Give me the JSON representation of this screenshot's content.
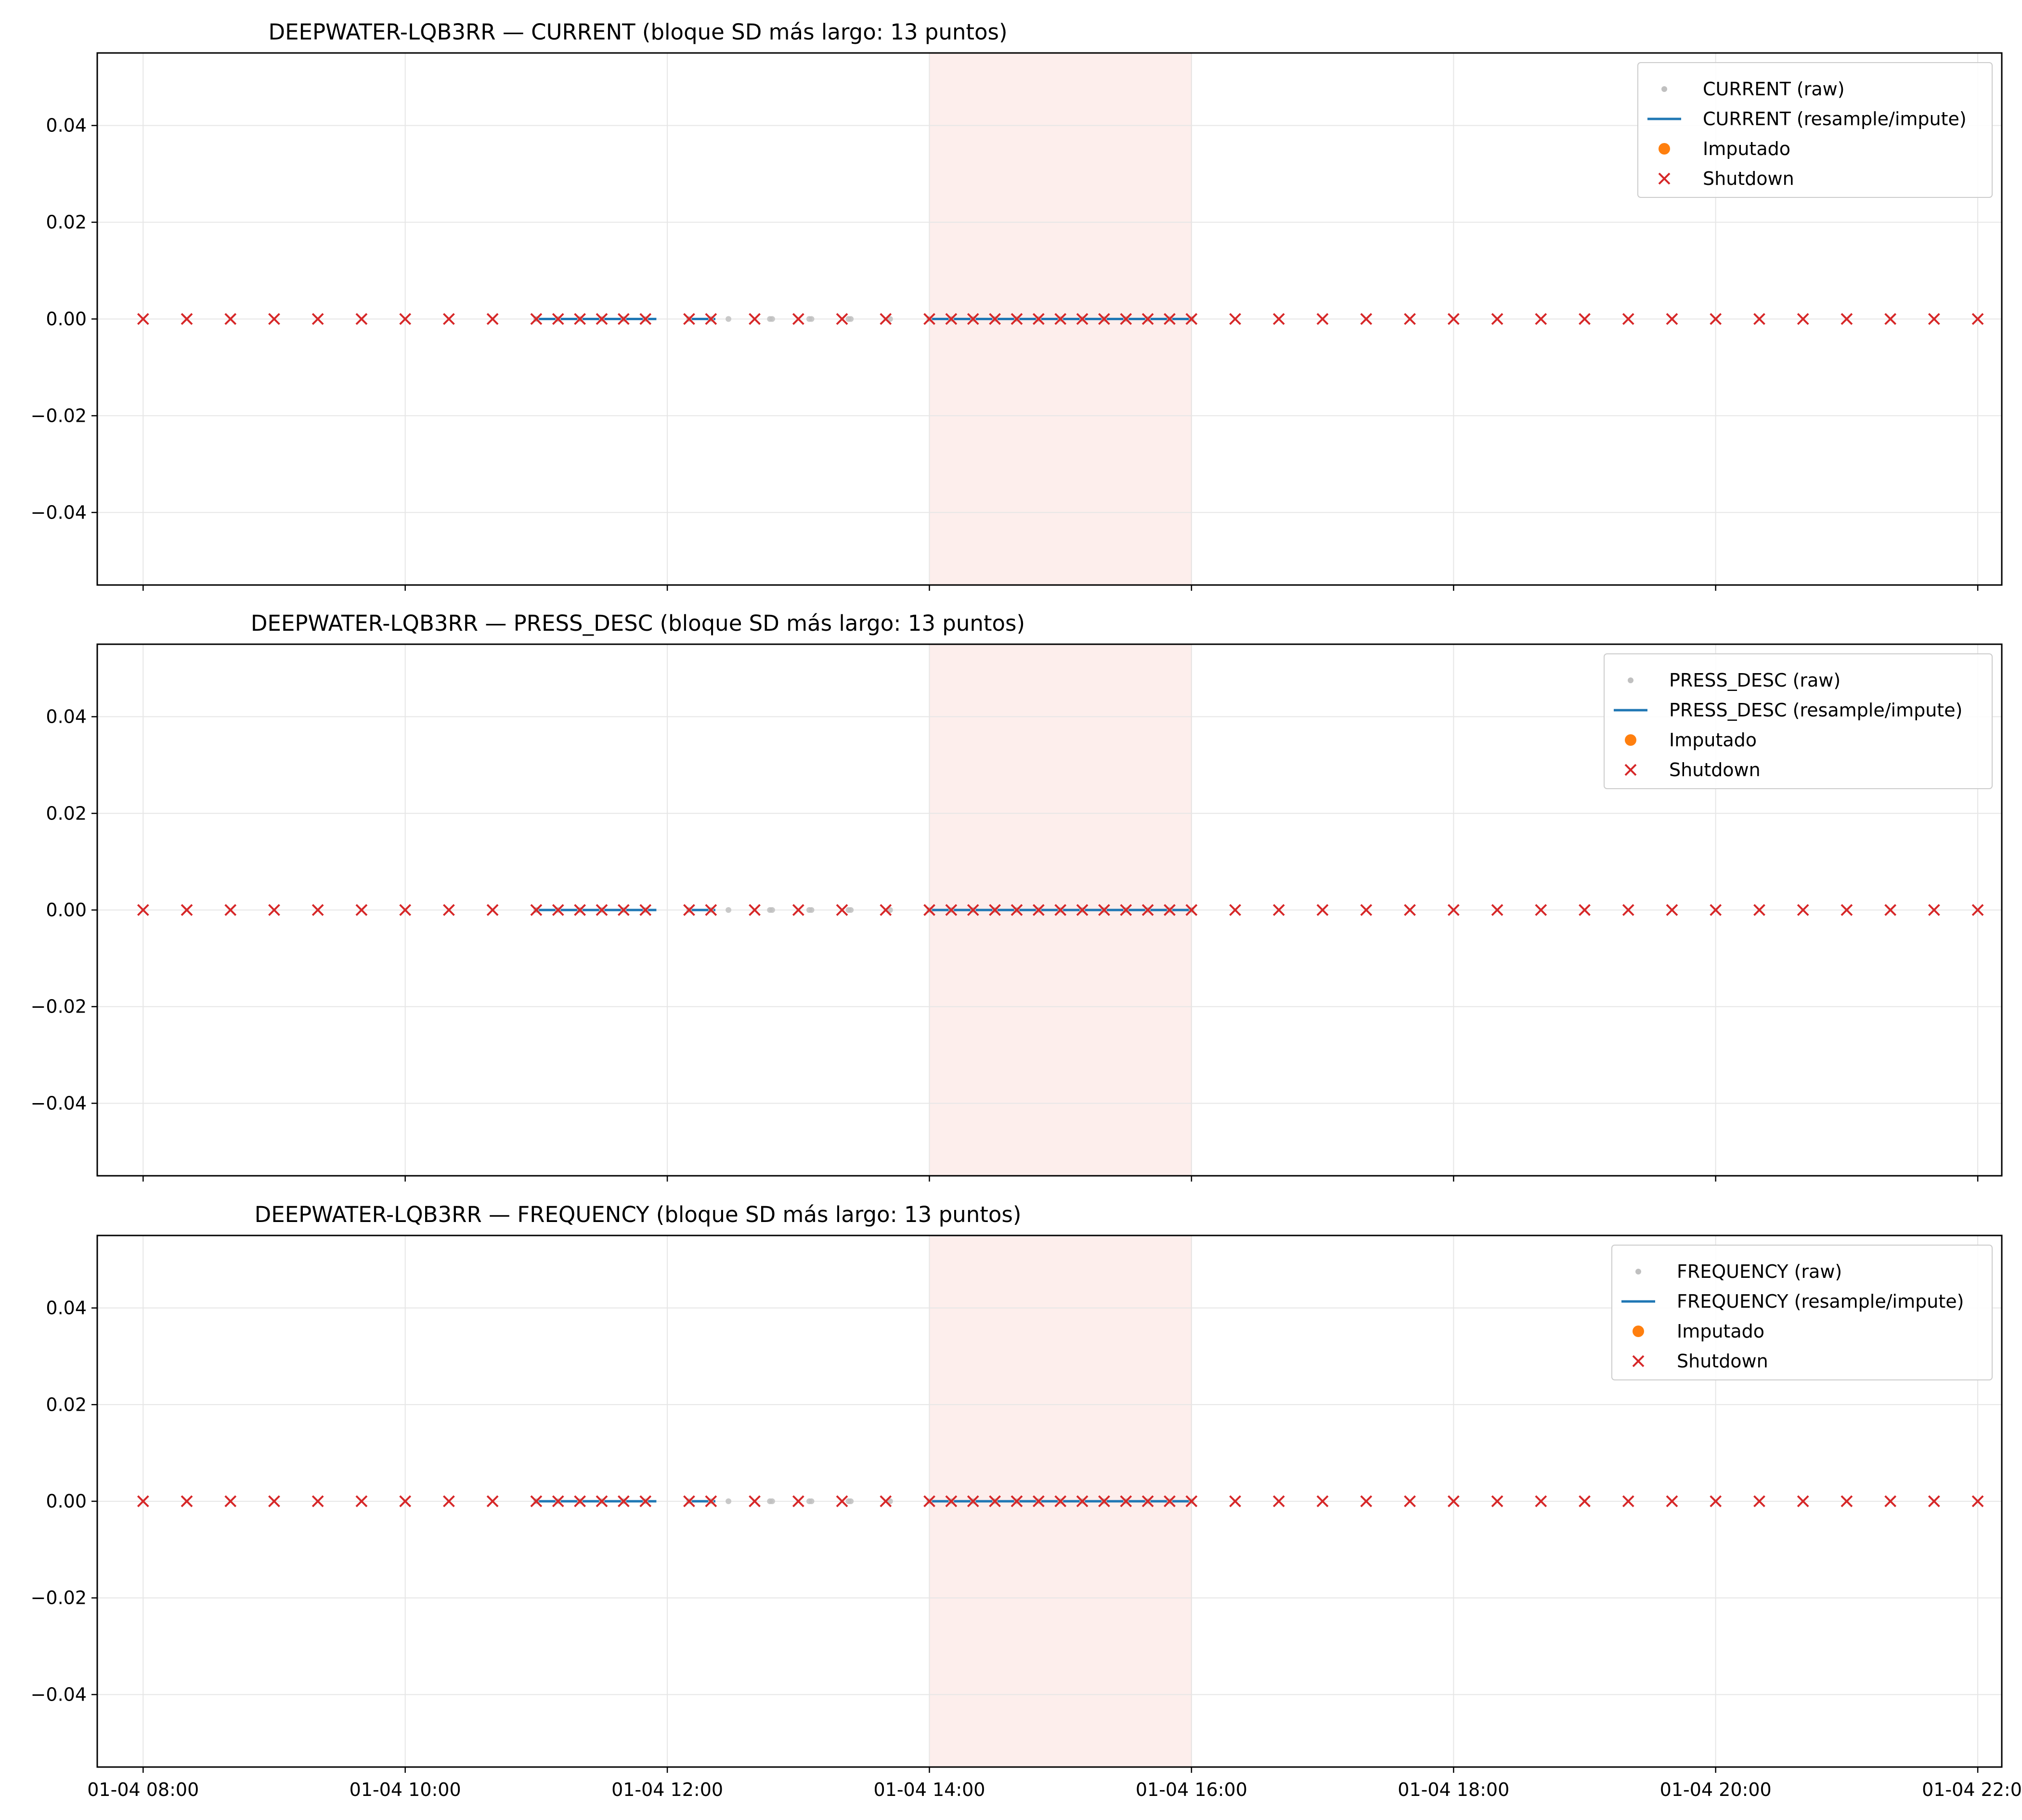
{
  "chart_data": [
    {
      "type": "scatter",
      "title": "DEEPWATER-LQB3RR — CURRENT  (bloque SD más largo: 13 puntos)",
      "xlabel": "",
      "ylabel": "",
      "ylim": [
        -0.055,
        0.055
      ],
      "grid": true,
      "legend_position": "top-right",
      "legend": [
        "CURRENT (raw)",
        "CURRENT (resample/impute)",
        "Imputado",
        "Shutdown"
      ],
      "shaded_span": [
        "01-04 14:00",
        "01-04 16:00"
      ]
    },
    {
      "type": "scatter",
      "title": "DEEPWATER-LQB3RR — PRESS_DESC  (bloque SD más largo: 13 puntos)",
      "xlabel": "",
      "ylabel": "",
      "ylim": [
        -0.055,
        0.055
      ],
      "grid": true,
      "legend_position": "top-right",
      "legend": [
        "PRESS_DESC (raw)",
        "PRESS_DESC (resample/impute)",
        "Imputado",
        "Shutdown"
      ],
      "shaded_span": [
        "01-04 14:00",
        "01-04 16:00"
      ]
    },
    {
      "type": "scatter",
      "title": "DEEPWATER-LQB3RR — FREQUENCY  (bloque SD más largo: 13 puntos)",
      "xlabel": "",
      "ylabel": "",
      "ylim": [
        -0.055,
        0.055
      ],
      "grid": true,
      "legend_position": "top-right",
      "legend": [
        "FREQUENCY (raw)",
        "FREQUENCY (resample/impute)",
        "Imputado",
        "Shutdown"
      ],
      "shaded_span": [
        "01-04 14:00",
        "01-04 16:00"
      ]
    }
  ],
  "shared": {
    "x_ticks": [
      "01-04 08:00",
      "01-04 10:00",
      "01-04 12:00",
      "01-04 14:00",
      "01-04 16:00",
      "01-04 18:00",
      "01-04 20:00",
      "01-04 22:00"
    ],
    "y_ticks": [
      0.04,
      0.02,
      0.0,
      -0.02,
      -0.04
    ],
    "y_tick_labels": [
      "0.04",
      "0.02",
      "0.00",
      "−0.02",
      "−0.04"
    ],
    "shutdown_points": [
      {
        "x": "01-04 08:00",
        "y": 0.0
      },
      {
        "x": "01-04 08:20",
        "y": 0.0
      },
      {
        "x": "01-04 08:40",
        "y": 0.0
      },
      {
        "x": "01-04 09:00",
        "y": 0.0
      },
      {
        "x": "01-04 09:20",
        "y": 0.0
      },
      {
        "x": "01-04 09:40",
        "y": 0.0
      },
      {
        "x": "01-04 10:00",
        "y": 0.0
      },
      {
        "x": "01-04 10:20",
        "y": 0.0
      },
      {
        "x": "01-04 10:40",
        "y": 0.0
      },
      {
        "x": "01-04 11:00",
        "y": 0.0
      },
      {
        "x": "01-04 11:10",
        "y": 0.0
      },
      {
        "x": "01-04 11:20",
        "y": 0.0
      },
      {
        "x": "01-04 11:30",
        "y": 0.0
      },
      {
        "x": "01-04 11:40",
        "y": 0.0
      },
      {
        "x": "01-04 11:50",
        "y": 0.0
      },
      {
        "x": "01-04 12:10",
        "y": 0.0
      },
      {
        "x": "01-04 12:20",
        "y": 0.0
      },
      {
        "x": "01-04 12:40",
        "y": 0.0
      },
      {
        "x": "01-04 13:00",
        "y": 0.0
      },
      {
        "x": "01-04 13:20",
        "y": 0.0
      },
      {
        "x": "01-04 13:40",
        "y": 0.0
      },
      {
        "x": "01-04 14:00",
        "y": 0.0
      },
      {
        "x": "01-04 14:10",
        "y": 0.0
      },
      {
        "x": "01-04 14:20",
        "y": 0.0
      },
      {
        "x": "01-04 14:30",
        "y": 0.0
      },
      {
        "x": "01-04 14:40",
        "y": 0.0
      },
      {
        "x": "01-04 14:50",
        "y": 0.0
      },
      {
        "x": "01-04 15:00",
        "y": 0.0
      },
      {
        "x": "01-04 15:10",
        "y": 0.0
      },
      {
        "x": "01-04 15:20",
        "y": 0.0
      },
      {
        "x": "01-04 15:30",
        "y": 0.0
      },
      {
        "x": "01-04 15:40",
        "y": 0.0
      },
      {
        "x": "01-04 15:50",
        "y": 0.0
      },
      {
        "x": "01-04 16:00",
        "y": 0.0
      },
      {
        "x": "01-04 16:20",
        "y": 0.0
      },
      {
        "x": "01-04 16:40",
        "y": 0.0
      },
      {
        "x": "01-04 17:00",
        "y": 0.0
      },
      {
        "x": "01-04 17:20",
        "y": 0.0
      },
      {
        "x": "01-04 17:40",
        "y": 0.0
      },
      {
        "x": "01-04 18:00",
        "y": 0.0
      },
      {
        "x": "01-04 18:20",
        "y": 0.0
      },
      {
        "x": "01-04 18:40",
        "y": 0.0
      },
      {
        "x": "01-04 19:00",
        "y": 0.0
      },
      {
        "x": "01-04 19:20",
        "y": 0.0
      },
      {
        "x": "01-04 19:40",
        "y": 0.0
      },
      {
        "x": "01-04 20:00",
        "y": 0.0
      },
      {
        "x": "01-04 20:20",
        "y": 0.0
      },
      {
        "x": "01-04 20:40",
        "y": 0.0
      },
      {
        "x": "01-04 21:00",
        "y": 0.0
      },
      {
        "x": "01-04 21:20",
        "y": 0.0
      },
      {
        "x": "01-04 21:40",
        "y": 0.0
      },
      {
        "x": "01-04 22:00",
        "y": 0.0
      }
    ],
    "raw_points": [
      {
        "x": "01-04 11:00",
        "y": 0.0
      },
      {
        "x": "01-04 11:10",
        "y": 0.0
      },
      {
        "x": "01-04 11:20",
        "y": 0.0
      },
      {
        "x": "01-04 11:30",
        "y": 0.0
      },
      {
        "x": "01-04 11:40",
        "y": 0.0
      },
      {
        "x": "01-04 11:50",
        "y": 0.0
      },
      {
        "x": "01-04 12:10",
        "y": 0.0
      },
      {
        "x": "01-04 12:20",
        "y": 0.0
      },
      {
        "x": "01-04 12:28",
        "y": 0.0
      },
      {
        "x": "01-04 12:47",
        "y": 0.0
      },
      {
        "x": "01-04 12:48",
        "y": 0.0
      },
      {
        "x": "01-04 13:05",
        "y": 0.0
      },
      {
        "x": "01-04 13:06",
        "y": 0.0
      },
      {
        "x": "01-04 13:23",
        "y": 0.0
      },
      {
        "x": "01-04 13:24",
        "y": 0.0
      },
      {
        "x": "01-04 13:42",
        "y": 0.0
      },
      {
        "x": "01-04 14:00",
        "y": 0.0
      },
      {
        "x": "01-04 14:10",
        "y": 0.0
      },
      {
        "x": "01-04 14:20",
        "y": 0.0
      },
      {
        "x": "01-04 14:30",
        "y": 0.0
      },
      {
        "x": "01-04 14:40",
        "y": 0.0
      },
      {
        "x": "01-04 14:50",
        "y": 0.0
      },
      {
        "x": "01-04 15:00",
        "y": 0.0
      },
      {
        "x": "01-04 15:10",
        "y": 0.0
      },
      {
        "x": "01-04 15:20",
        "y": 0.0
      },
      {
        "x": "01-04 15:30",
        "y": 0.0
      },
      {
        "x": "01-04 15:40",
        "y": 0.0
      },
      {
        "x": "01-04 15:50",
        "y": 0.0
      },
      {
        "x": "01-04 16:00",
        "y": 0.0
      }
    ],
    "resample_segments": [
      {
        "x": [
          "01-04 11:00",
          "01-04 11:55"
        ],
        "y": [
          0.0,
          0.0
        ]
      },
      {
        "x": [
          "01-04 12:10",
          "01-04 12:22"
        ],
        "y": [
          0.0,
          0.0
        ]
      },
      {
        "x": [
          "01-04 14:00",
          "01-04 16:00"
        ],
        "y": [
          0.0,
          0.0
        ]
      }
    ],
    "imputed_points": [],
    "colors": {
      "raw": "#c0c0c0",
      "resample": "#1f77b4",
      "imputed": "#ff7f0e",
      "shutdown": "#d62728",
      "shade": "#fdeeec",
      "grid": "#e6e6e6"
    }
  }
}
